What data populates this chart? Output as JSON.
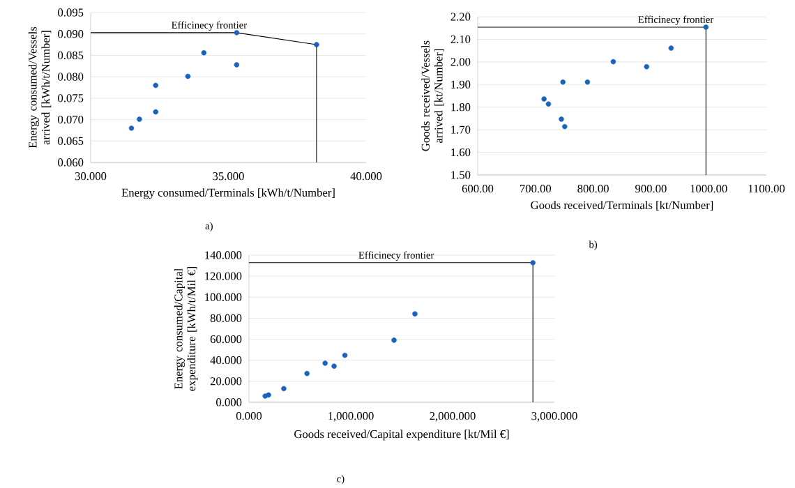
{
  "chart_data": [
    {
      "type": "scatter",
      "xlabel": "Energy consumed/Terminals [kWh/t/Number]",
      "ylabel": "Energy consumed/Vessels arrived [kWh/t/Number]",
      "xlim": [
        30,
        40
      ],
      "ylim": [
        0.06,
        0.095
      ],
      "xticks": [
        {
          "value": 30,
          "label": "30.000"
        },
        {
          "value": 35,
          "label": "35.000"
        },
        {
          "value": 40,
          "label": "40.000"
        }
      ],
      "yticks": [
        {
          "value": 0.06,
          "label": "0.060"
        },
        {
          "value": 0.065,
          "label": "0.065"
        },
        {
          "value": 0.07,
          "label": "0.070"
        },
        {
          "value": 0.075,
          "label": "0.075"
        },
        {
          "value": 0.08,
          "label": "0.080"
        },
        {
          "value": 0.085,
          "label": "0.085"
        },
        {
          "value": 0.09,
          "label": "0.090"
        },
        {
          "value": 0.095,
          "label": "0.095"
        }
      ],
      "grid": "y",
      "series": [
        {
          "color": "#1763c4",
          "marker": "circle",
          "x": [
            31.48,
            31.77,
            32.36,
            32.36,
            33.53,
            34.11,
            35.3,
            35.3,
            38.2
          ],
          "values": [
            0.068,
            0.0701,
            0.0718,
            0.078,
            0.0801,
            0.0856,
            0.0828,
            0.0903,
            0.0875
          ]
        },
        {
          "type": "line",
          "color": "#000000",
          "marker": "none",
          "x": [
            30,
            35.3,
            38.2,
            38.2
          ],
          "values": [
            0.0903,
            0.0903,
            0.0875,
            0.06
          ]
        }
      ],
      "annotations": [
        {
          "text": "Efficinecy frontier",
          "x": 34.3,
          "y": 0.0903
        },
        "a)"
      ]
    },
    {
      "type": "scatter",
      "xlabel": "Goods received/Terminals [kt/Number]",
      "ylabel": "Goods received/Vessels arrived [kt/Number]",
      "xlim": [
        600,
        1100
      ],
      "ylim": [
        1.5,
        2.2
      ],
      "xticks": [
        {
          "value": 600,
          "label": "600.00"
        },
        {
          "value": 700,
          "label": "700.00"
        },
        {
          "value": 800,
          "label": "800.00"
        },
        {
          "value": 900,
          "label": "900.00"
        },
        {
          "value": 1000,
          "label": "1000.00"
        },
        {
          "value": 1100,
          "label": "1100.00"
        }
      ],
      "yticks": [
        {
          "value": 1.5,
          "label": "1.50"
        },
        {
          "value": 1.6,
          "label": "1.60"
        },
        {
          "value": 1.7,
          "label": "1.70"
        },
        {
          "value": 1.8,
          "label": "1.80"
        },
        {
          "value": 1.9,
          "label": "1.90"
        },
        {
          "value": 2.0,
          "label": "2.00"
        },
        {
          "value": 2.1,
          "label": "2.10"
        },
        {
          "value": 2.2,
          "label": "2.20"
        }
      ],
      "grid": "y",
      "series": [
        {
          "color": "#1763c4",
          "marker": "circle",
          "x": [
            714.9,
            722.5,
            744.9,
            750.7,
            747.6,
            790.1,
            834.8,
            892.5,
            935.0,
            995.3
          ],
          "values": [
            1.836,
            1.814,
            1.747,
            1.714,
            1.911,
            1.911,
            2.001,
            1.979,
            2.061,
            2.154
          ]
        },
        {
          "type": "line",
          "color": "#000000",
          "marker": "none",
          "x": [
            600,
            995.3,
            995.3
          ],
          "values": [
            2.154,
            2.154,
            1.5
          ]
        }
      ],
      "annotations": [
        {
          "text": "Efficinecy frontier",
          "x": 943,
          "y": 2.154
        },
        "b)"
      ]
    },
    {
      "type": "scatter",
      "xlabel": "Goods received/Capital expenditure [kt/Mil €]",
      "ylabel": "Energy consumed/Capital expenditure [kWh/t/Mil €]",
      "xlim": [
        0,
        3000
      ],
      "ylim": [
        0,
        140
      ],
      "xticks": [
        {
          "value": 0,
          "label": "0.000"
        },
        {
          "value": 1000,
          "label": "1,000.000"
        },
        {
          "value": 2000,
          "label": "2,000.000"
        },
        {
          "value": 3000,
          "label": "3,000.000"
        }
      ],
      "yticks": [
        {
          "value": 0,
          "label": "0.000"
        },
        {
          "value": 20,
          "label": "20.000"
        },
        {
          "value": 40,
          "label": "40.000"
        },
        {
          "value": 60,
          "label": "60.000"
        },
        {
          "value": 80,
          "label": "80.000"
        },
        {
          "value": 100,
          "label": "100.000"
        },
        {
          "value": 120,
          "label": "120.000"
        },
        {
          "value": 140,
          "label": "140.000"
        }
      ],
      "grid": "y",
      "series": [
        {
          "color": "#1763c4",
          "marker": "circle",
          "x": [
            159,
            192,
            342,
            570,
            748,
            836,
            942,
            1425,
            1630,
            2789
          ],
          "values": [
            5.9,
            6.9,
            13.0,
            27.4,
            37.2,
            34.3,
            44.7,
            59.1,
            84.1,
            132.8
          ]
        },
        {
          "type": "line",
          "color": "#000000",
          "marker": "none",
          "x": [
            0,
            2789,
            2789
          ],
          "values": [
            132.8,
            132.8,
            0
          ]
        }
      ],
      "annotations": [
        {
          "text": "Efficinecy frontier",
          "x": 1446,
          "y": 132.8
        },
        "c)"
      ]
    }
  ]
}
